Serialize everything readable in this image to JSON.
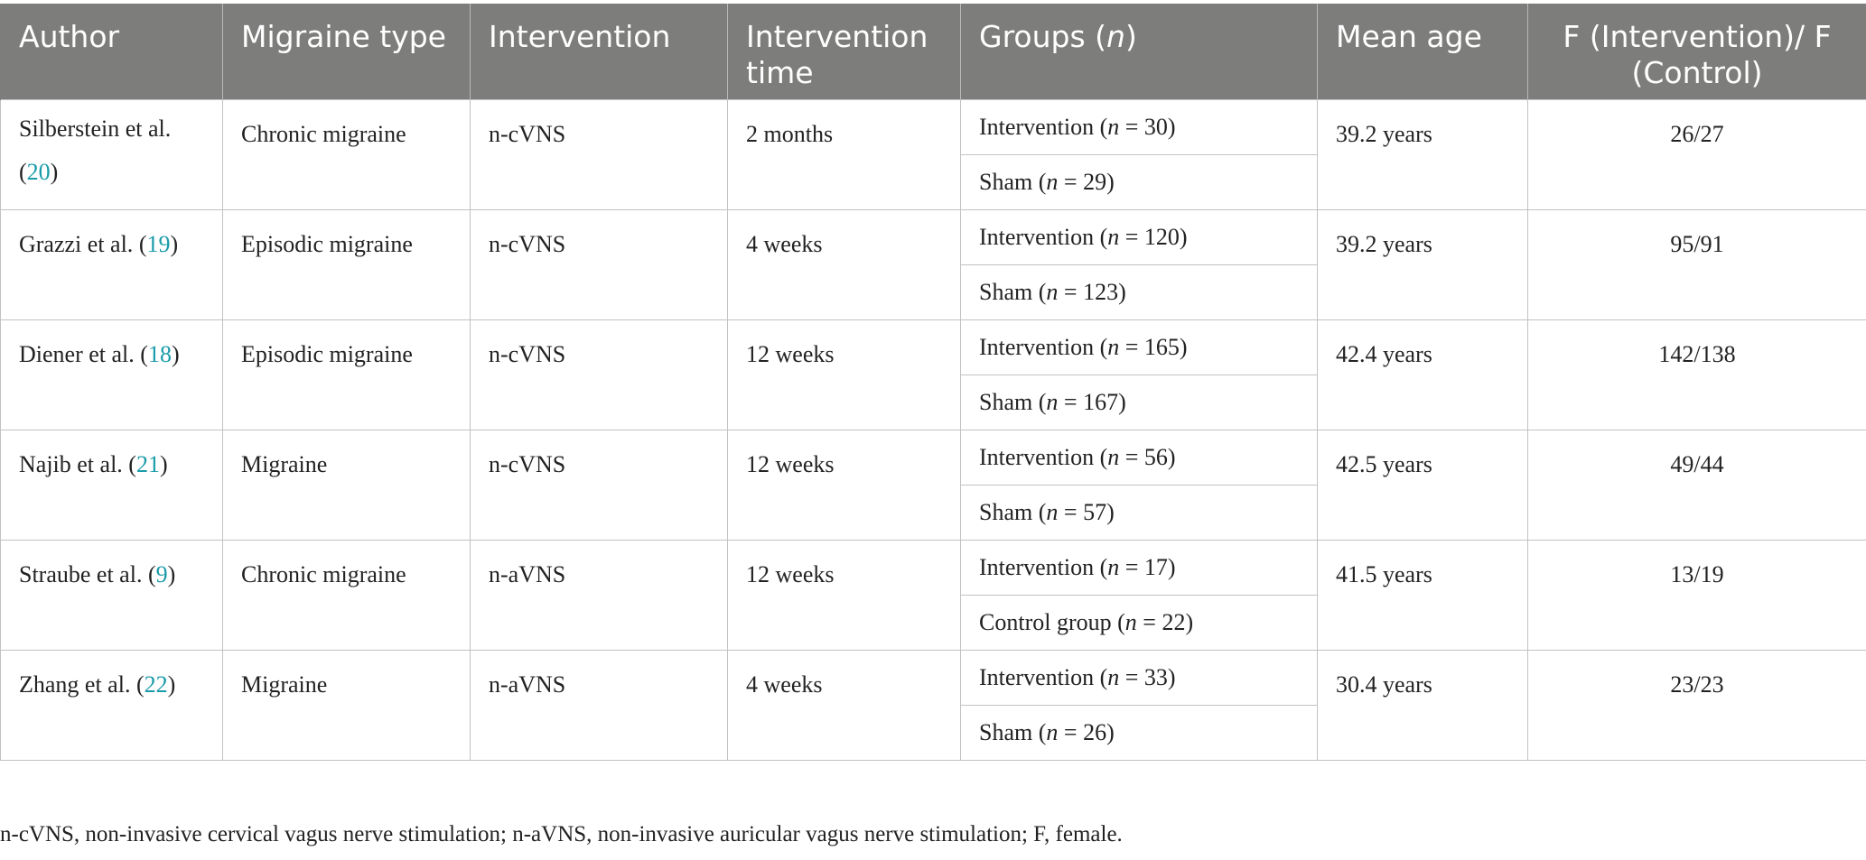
{
  "table": {
    "headers": {
      "author": "Author",
      "migraine_type": "Migraine type",
      "intervention": "Intervention",
      "intervention_time": "Intervention time",
      "groups_prefix": "Groups (",
      "groups_n": "n",
      "groups_suffix": ")",
      "mean_age": "Mean age",
      "f_ratio": "F (Intervention)/ F (Control)"
    },
    "rows": [
      {
        "author": "Silberstein et al.",
        "ref": "20",
        "migraine_type": "Chronic migraine",
        "intervention": "n-cVNS",
        "time": "2 months",
        "group1_label": "Intervention",
        "group1_n": "30",
        "group2_label": "Sham",
        "group2_n": "29",
        "mean_age": "39.2 years",
        "f_ratio": "26/27"
      },
      {
        "author": "Grazzi et al.",
        "ref": "19",
        "migraine_type": "Episodic migraine",
        "intervention": "n-cVNS",
        "time": "4 weeks",
        "group1_label": "Intervention",
        "group1_n": "120",
        "group2_label": "Sham",
        "group2_n": "123",
        "mean_age": "39.2 years",
        "f_ratio": "95/91"
      },
      {
        "author": "Diener et al.",
        "ref": "18",
        "migraine_type": "Episodic migraine",
        "intervention": "n-cVNS",
        "time": "12 weeks",
        "group1_label": "Intervention",
        "group1_n": "165",
        "group2_label": "Sham",
        "group2_n": "167",
        "mean_age": "42.4 years",
        "f_ratio": "142/138"
      },
      {
        "author": "Najib et al.",
        "ref": "21",
        "migraine_type": "Migraine",
        "intervention": "n-cVNS",
        "time": "12 weeks",
        "group1_label": "Intervention",
        "group1_n": "56",
        "group2_label": "Sham",
        "group2_n": "57",
        "mean_age": "42.5 years",
        "f_ratio": "49/44"
      },
      {
        "author": "Straube et al.",
        "ref": "9",
        "migraine_type": "Chronic migraine",
        "intervention": "n-aVNS",
        "time": "12 weeks",
        "group1_label": "Intervention",
        "group1_n": "17",
        "group2_label": "Control group",
        "group2_n": "22",
        "mean_age": "41.5 years",
        "f_ratio": "13/19"
      },
      {
        "author": "Zhang et al.",
        "ref": "22",
        "migraine_type": "Migraine",
        "intervention": "n-aVNS",
        "time": "4 weeks",
        "group1_label": "Intervention",
        "group1_n": "33",
        "group2_label": "Sham",
        "group2_n": "26",
        "mean_age": "30.4 years",
        "f_ratio": "23/23"
      }
    ]
  },
  "footnote": "n-cVNS, non-invasive cervical vagus nerve stimulation; n-aVNS, non-invasive auricular vagus nerve stimulation; F, female.",
  "colors": {
    "header_bg": "#7d7e7c",
    "header_text": "#ffffff",
    "reference_link": "#1a9ba8",
    "grid_line": "#c2c2c2"
  }
}
